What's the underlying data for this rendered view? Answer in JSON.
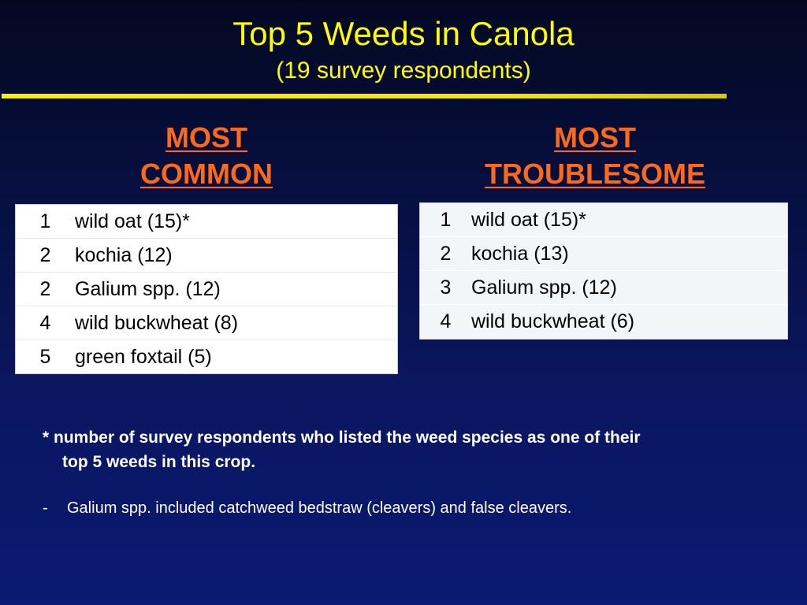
{
  "slide": {
    "title": "Top 5 Weeds in Canola",
    "subtitle": "(19 survey respondents)"
  },
  "most_common": {
    "heading_line1": "MOST",
    "heading_line2": "COMMON",
    "rows": [
      {
        "rank": "1",
        "name": "wild oat (15)*"
      },
      {
        "rank": "2",
        "name": "kochia (12)"
      },
      {
        "rank": "2",
        "name": "Galium spp. (12)"
      },
      {
        "rank": "4",
        "name": "wild buckwheat (8)"
      },
      {
        "rank": "5",
        "name": "green foxtail (5)"
      }
    ]
  },
  "most_troublesome": {
    "heading_line1": "MOST",
    "heading_line2": "TROUBLESOME",
    "rows": [
      {
        "rank": "1",
        "name": "wild oat (15)*"
      },
      {
        "rank": "2",
        "name": "kochia (13)"
      },
      {
        "rank": "3",
        "name": "Galium spp. (12)"
      },
      {
        "rank": "4",
        "name": "wild buckwheat (6)"
      }
    ]
  },
  "footnote": {
    "line1": "* number of survey respondents who listed the weed species as one of their",
    "line2": "top 5 weeds in this crop."
  },
  "note": {
    "dash": "-",
    "text": "Galium spp. included catchweed bedstraw (cleavers) and false cleavers."
  },
  "colors": {
    "title": "#ffff00",
    "heading": "#ff6a1a",
    "background": "#0a1660"
  }
}
